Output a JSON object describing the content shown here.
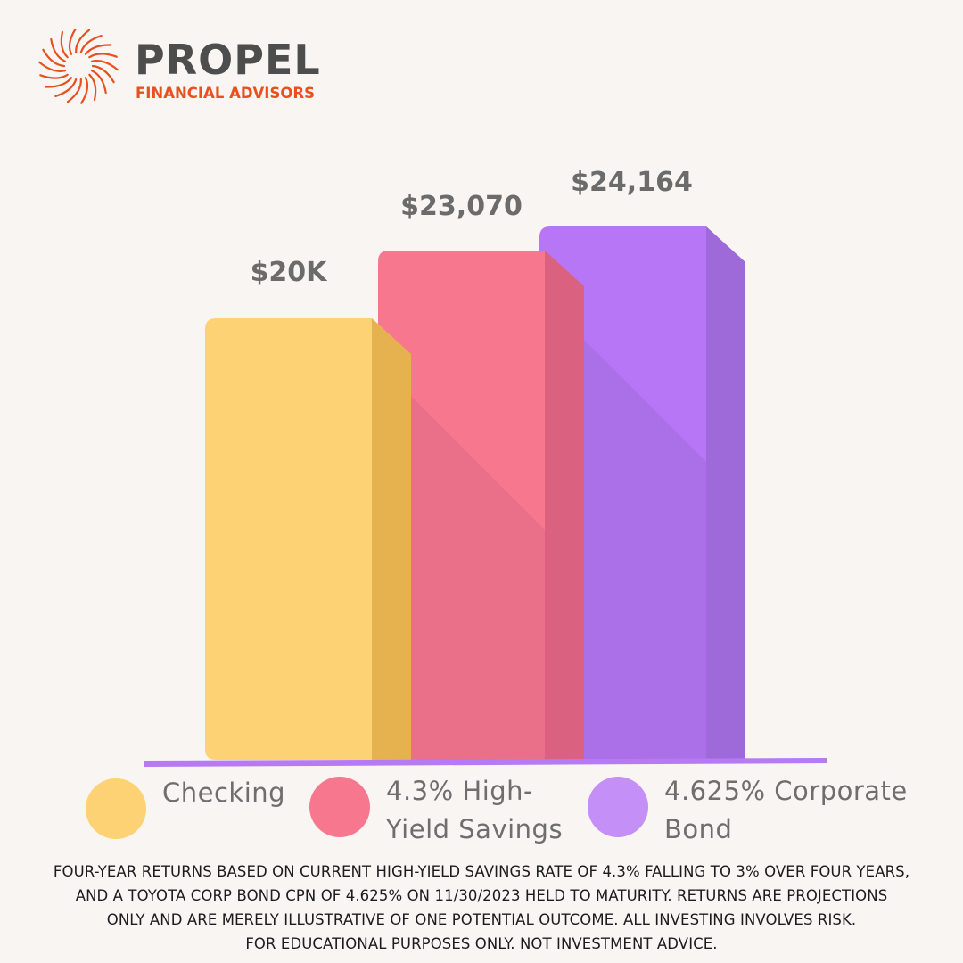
{
  "brand": {
    "name": "PROPEL",
    "tagline": "FINANCIAL ADVISORS",
    "accent_color": "#e8501f",
    "icon": "starburst-logo-icon"
  },
  "chart_data": {
    "type": "bar",
    "categories": [
      "Checking",
      "4.3% High-Yield Savings",
      "4.625% Corporate Bond"
    ],
    "values": [
      20000,
      23070,
      24164
    ],
    "data_labels": [
      "$20K",
      "$23,070",
      "$24,164"
    ],
    "colors": [
      "#fcd274",
      "#f7778f",
      "#b676f5"
    ],
    "side_colors": [
      "#e5b24f",
      "#db6181",
      "#9e6ad9"
    ],
    "dark_colors": [
      "#e5b24f",
      "#e86f88",
      "#aa70e5"
    ],
    "axis_color": "#b67af2",
    "title": "",
    "xlabel": "",
    "ylabel": "",
    "legend_position": "bottom",
    "grid": false
  },
  "legend": [
    {
      "lines": [
        "Checking"
      ],
      "color": "#fcd274"
    },
    {
      "lines": [
        "4.3% High-",
        "Yield Savings"
      ],
      "color": "#f7778f"
    },
    {
      "lines": [
        "4.625% Corporate",
        "Bond"
      ],
      "color": "#c48ff7"
    }
  ],
  "footnote": {
    "lines": [
      "FOUR-YEAR RETURNS BASED ON CURRENT HIGH-YIELD SAVINGS RATE OF 4.3% FALLING TO 3% OVER FOUR YEARS,",
      "AND A TOYOTA CORP BOND CPN OF 4.625% ON 11/30/2023 HELD TO MATURITY. RETURNS ARE PROJECTIONS",
      "ONLY AND ARE MERELY ILLUSTRATIVE OF ONE POTENTIAL OUTCOME. ALL INVESTING INVOLVES RISK.",
      "FOR EDUCATIONAL PURPOSES ONLY. NOT INVESTMENT ADVICE."
    ]
  }
}
